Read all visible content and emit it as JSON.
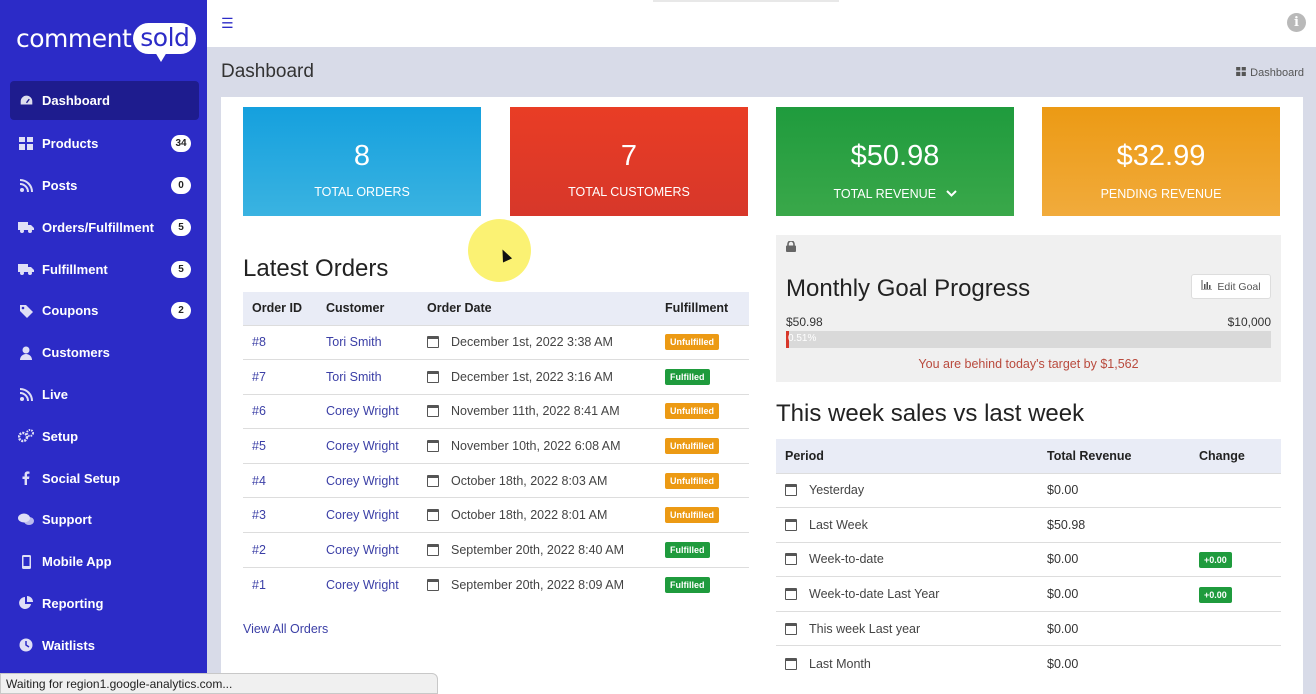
{
  "app": {
    "logo_left": "comment",
    "logo_right": "sold"
  },
  "sidebar": {
    "items": [
      {
        "label": "Dashboard",
        "icon": "dashboard-icon",
        "badge": ""
      },
      {
        "label": "Products",
        "icon": "grid-icon",
        "badge": "34"
      },
      {
        "label": "Posts",
        "icon": "rss-icon",
        "badge": "0"
      },
      {
        "label": "Orders/Fulfillment",
        "icon": "truck-icon",
        "badge": "5"
      },
      {
        "label": "Fulfillment",
        "icon": "truck-icon",
        "badge": "5"
      },
      {
        "label": "Coupons",
        "icon": "tag-icon",
        "badge": "2"
      },
      {
        "label": "Customers",
        "icon": "user-icon",
        "badge": ""
      },
      {
        "label": "Live",
        "icon": "rss-icon",
        "badge": ""
      },
      {
        "label": "Setup",
        "icon": "gears-icon",
        "badge": ""
      },
      {
        "label": "Social Setup",
        "icon": "facebook-icon",
        "badge": ""
      },
      {
        "label": "Support",
        "icon": "chat-icon",
        "badge": ""
      },
      {
        "label": "Mobile App",
        "icon": "mobile-icon",
        "badge": ""
      },
      {
        "label": "Reporting",
        "icon": "pie-chart-icon",
        "badge": ""
      },
      {
        "label": "Waitlists",
        "icon": "clock-icon",
        "badge": ""
      }
    ]
  },
  "header": {
    "title": "Dashboard",
    "breadcrumb": "Dashboard"
  },
  "stats": [
    {
      "value": "8",
      "label": "TOTAL ORDERS"
    },
    {
      "value": "7",
      "label": "TOTAL CUSTOMERS"
    },
    {
      "value": "$50.98",
      "label": "TOTAL REVENUE"
    },
    {
      "value": "$32.99",
      "label": "PENDING REVENUE"
    }
  ],
  "latest_orders": {
    "title": "Latest Orders",
    "columns": [
      "Order ID",
      "Customer",
      "Order Date",
      "Fulfillment"
    ],
    "rows": [
      {
        "id": "#8",
        "customer": "Tori Smith",
        "date": "December 1st, 2022 3:38 AM",
        "status": "Unfulfilled"
      },
      {
        "id": "#7",
        "customer": "Tori Smith",
        "date": "December 1st, 2022 3:16 AM",
        "status": "Fulfilled"
      },
      {
        "id": "#6",
        "customer": "Corey Wright",
        "date": "November 11th, 2022 8:41 AM",
        "status": "Unfulfilled"
      },
      {
        "id": "#5",
        "customer": "Corey Wright",
        "date": "November 10th, 2022 6:08 AM",
        "status": "Unfulfilled"
      },
      {
        "id": "#4",
        "customer": "Corey Wright",
        "date": "October 18th, 2022 8:03 AM",
        "status": "Unfulfilled"
      },
      {
        "id": "#3",
        "customer": "Corey Wright",
        "date": "October 18th, 2022 8:01 AM",
        "status": "Unfulfilled"
      },
      {
        "id": "#2",
        "customer": "Corey Wright",
        "date": "September 20th, 2022 8:40 AM",
        "status": "Fulfilled"
      },
      {
        "id": "#1",
        "customer": "Corey Wright",
        "date": "September 20th, 2022 8:09 AM",
        "status": "Fulfilled"
      }
    ],
    "view_all": "View All Orders"
  },
  "goal": {
    "title": "Monthly Goal Progress",
    "edit_label": "Edit Goal",
    "current": "$50.98",
    "target": "$10,000",
    "percent_label": "0.51%",
    "progress": 0.0051,
    "message": "You are behind today's target by $1,562"
  },
  "weekly": {
    "title": "This week sales vs last week",
    "columns": [
      "Period",
      "Total Revenue",
      "Change"
    ],
    "rows": [
      {
        "period": "Yesterday",
        "revenue": "$0.00",
        "change": ""
      },
      {
        "period": "Last Week",
        "revenue": "$50.98",
        "change": ""
      },
      {
        "period": "Week-to-date",
        "revenue": "$0.00",
        "change": "+0.00"
      },
      {
        "period": "Week-to-date Last Year",
        "revenue": "$0.00",
        "change": "+0.00"
      },
      {
        "period": "This week Last year",
        "revenue": "$0.00",
        "change": ""
      },
      {
        "period": "Last Month",
        "revenue": "$0.00",
        "change": ""
      }
    ]
  },
  "status_bar": "Waiting for region1.google-analytics.com..."
}
